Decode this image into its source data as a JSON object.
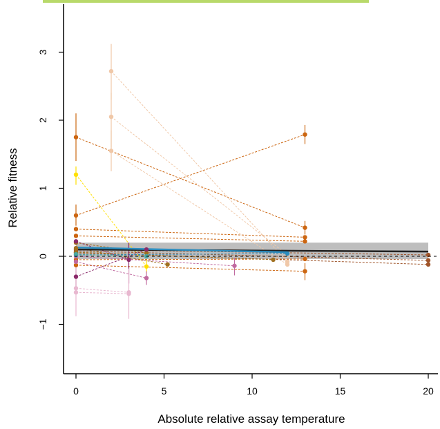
{
  "chart_data": {
    "type": "scatter",
    "xlabel": "Absolute relative assay temperature",
    "ylabel": "Relative fitness",
    "xlim": [
      -0.8,
      20.5
    ],
    "ylim": [
      -1.8,
      3.55
    ],
    "xticks": [
      "0",
      "5",
      "10",
      "15",
      "20"
    ],
    "xtick_values": [
      0,
      5,
      10,
      15,
      20
    ],
    "yticks": [
      "−1",
      "0",
      "1",
      "2",
      "3"
    ],
    "ytick_values": [
      -1,
      0,
      1,
      2,
      3
    ],
    "reference_line_y": 0,
    "legend_bar_color": "#b8d96a",
    "regression": {
      "color": "#222222",
      "band_color": "#b3b3b3",
      "x": [
        0,
        20
      ],
      "y": [
        0.1,
        0.07
      ],
      "band_low": [
        -0.04,
        -0.04
      ],
      "band_high": [
        0.2,
        0.2
      ]
    },
    "blue_fit": {
      "color": "#2b8cbe",
      "x": [
        0,
        12
      ],
      "y": [
        0.13,
        0.06
      ]
    },
    "series": [
      {
        "color": "#cc6611",
        "points": [
          {
            "x": 0,
            "y": 1.75,
            "lo": 1.4,
            "hi": 2.1
          },
          {
            "x": 13,
            "y": 0.42,
            "lo": 0.32,
            "hi": 0.52
          }
        ]
      },
      {
        "color": "#cc6611",
        "points": [
          {
            "x": 0,
            "y": 0.6,
            "lo": 0.45,
            "hi": 0.76
          },
          {
            "x": 13,
            "y": 1.79,
            "lo": 1.65,
            "hi": 1.93
          }
        ]
      },
      {
        "color": "#cc6611",
        "points": [
          {
            "x": 0,
            "y": 0.4
          },
          {
            "x": 13,
            "y": 0.28
          }
        ]
      },
      {
        "color": "#cc6611",
        "points": [
          {
            "x": 0,
            "y": 0.3
          },
          {
            "x": 13,
            "y": 0.22
          }
        ]
      },
      {
        "color": "#cc6611",
        "points": [
          {
            "x": 0,
            "y": -0.13
          },
          {
            "x": 13,
            "y": -0.22,
            "lo": -0.35,
            "hi": -0.1
          }
        ]
      },
      {
        "color": "#cc6611",
        "points": [
          {
            "x": 0,
            "y": -0.05
          },
          {
            "x": 13,
            "y": -0.04
          }
        ]
      },
      {
        "color": "#f0c8a8",
        "points": [
          {
            "x": 2,
            "y": 2.72,
            "lo": 2.3,
            "hi": 3.12
          },
          {
            "x": 12,
            "y": -0.08
          }
        ]
      },
      {
        "color": "#f0c8a8",
        "points": [
          {
            "x": 2,
            "y": 2.05,
            "lo": 1.6,
            "hi": 2.4
          },
          {
            "x": 12,
            "y": 0.02
          }
        ]
      },
      {
        "color": "#f0c8a8",
        "points": [
          {
            "x": 2,
            "y": 1.55,
            "lo": 1.25,
            "hi": 1.85
          },
          {
            "x": 12,
            "y": -0.12
          }
        ]
      },
      {
        "color": "#ffe000",
        "points": [
          {
            "x": 0,
            "y": 1.2,
            "lo": 1.05,
            "hi": 1.32
          },
          {
            "x": 4,
            "y": -0.15,
            "lo": -0.25,
            "hi": -0.05
          }
        ]
      },
      {
        "color": "#a0552a",
        "points": [
          {
            "x": 0,
            "y": 0.1
          },
          {
            "x": 20,
            "y": 0.02
          }
        ]
      },
      {
        "color": "#a0552a",
        "points": [
          {
            "x": 0,
            "y": 0.08
          },
          {
            "x": 20,
            "y": -0.06
          }
        ]
      },
      {
        "color": "#a0552a",
        "points": [
          {
            "x": 0,
            "y": 0.05
          },
          {
            "x": 20,
            "y": -0.12
          }
        ]
      },
      {
        "color": "#a07020",
        "points": [
          {
            "x": 0,
            "y": 0.12
          },
          {
            "x": 5.2,
            "y": -0.12
          }
        ]
      },
      {
        "color": "#a07020",
        "points": [
          {
            "x": 0,
            "y": 0.06
          },
          {
            "x": 11.2,
            "y": -0.05
          }
        ]
      },
      {
        "color": "#a07020",
        "points": [
          {
            "x": 0,
            "y": 0.2
          },
          {
            "x": 4,
            "y": 0.05
          }
        ]
      },
      {
        "color": "#8b2a6a",
        "points": [
          {
            "x": 0,
            "y": -0.3,
            "lo": -0.5,
            "hi": -0.12
          },
          {
            "x": 4,
            "y": 0.1
          }
        ]
      },
      {
        "color": "#8b2a6a",
        "points": [
          {
            "x": 0,
            "y": 0.22
          },
          {
            "x": 3,
            "y": -0.05,
            "lo": -0.4,
            "hi": 0.2
          }
        ]
      },
      {
        "color": "#c06aa0",
        "points": [
          {
            "x": 0,
            "y": 0.0
          },
          {
            "x": 9,
            "y": -0.14,
            "lo": -0.28,
            "hi": -0.02
          }
        ]
      },
      {
        "color": "#c06aa0",
        "points": [
          {
            "x": 0,
            "y": -0.08
          },
          {
            "x": 4,
            "y": -0.32,
            "lo": -0.42,
            "hi": -0.22
          }
        ]
      },
      {
        "color": "#e8b8d0",
        "points": [
          {
            "x": 0,
            "y": -0.47,
            "lo": -0.88,
            "hi": -0.12
          },
          {
            "x": 3,
            "y": -0.53,
            "lo": -0.92,
            "hi": -0.18
          }
        ]
      },
      {
        "color": "#e8b8d0",
        "points": [
          {
            "x": 0,
            "y": -0.53
          },
          {
            "x": 3,
            "y": -0.55
          }
        ]
      },
      {
        "color": "#2b8cbe",
        "points": [
          {
            "x": 0,
            "y": 0.02
          },
          {
            "x": 12,
            "y": 0.04
          }
        ]
      },
      {
        "color": "#4aa8a0",
        "points": [
          {
            "x": 0,
            "y": 0.03
          },
          {
            "x": 4,
            "y": 0.0
          }
        ]
      }
    ]
  }
}
